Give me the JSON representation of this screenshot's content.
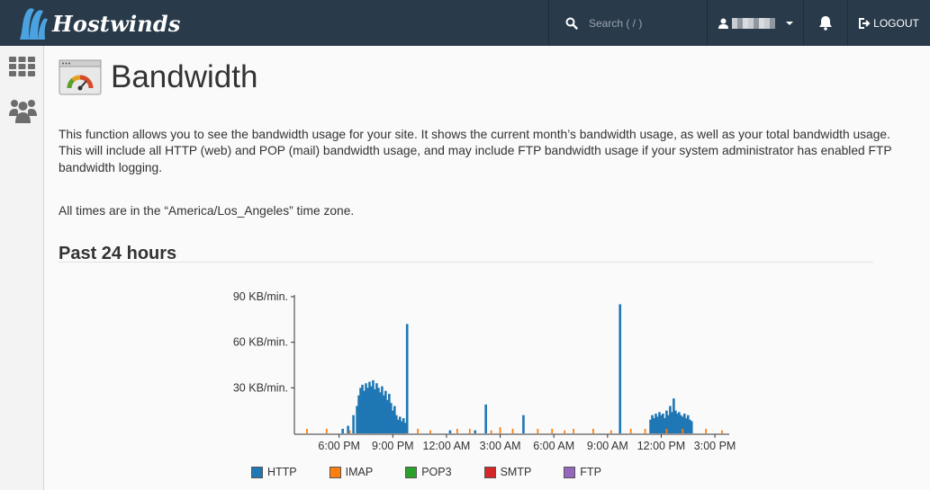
{
  "brand": {
    "name": "Hostwinds"
  },
  "header": {
    "search_placeholder": "Search ( / )",
    "logout_label": "LOGOUT"
  },
  "page": {
    "title": "Bandwidth",
    "description": "This function allows you to see the bandwidth usage for your site. It shows the current month’s bandwidth usage, as well as your total bandwidth usage. This will include all HTTP (web) and POP (mail) bandwidth usage, and may include FTP bandwidth usage if your system administrator has enabled FTP bandwidth logging.",
    "timezone_note": "All times are in the “America/Los_Angeles” time zone.",
    "section_title": "Past 24 hours"
  },
  "colors": {
    "topbar": "#293a4a",
    "http": "#1f77b4",
    "imap": "#ff7f0e",
    "pop3": "#2ca02c",
    "smtp": "#d62728",
    "ftp": "#9467bd"
  },
  "chart_data": {
    "type": "bar",
    "ylim": [
      0,
      90
    ],
    "y_ticks": [
      {
        "value": 30,
        "label": "30 KB/min."
      },
      {
        "value": 60,
        "label": "60 KB/min."
      },
      {
        "value": 90,
        "label": "90 KB/min."
      }
    ],
    "x_tick_labels": [
      "6:00 PM",
      "9:00 PM",
      "12:00 AM",
      "3:00 AM",
      "6:00 AM",
      "9:00 AM",
      "12:00 PM",
      "3:00 PM"
    ],
    "x_range_hours": [
      15.5,
      39.7
    ],
    "series": [
      {
        "name": "HTTP",
        "color": "#1f77b4",
        "points": [
          [
            18.2,
            3
          ],
          [
            18.5,
            5
          ],
          [
            18.8,
            12
          ],
          [
            19.0,
            18
          ],
          [
            19.1,
            25
          ],
          [
            19.2,
            30
          ],
          [
            19.3,
            32
          ],
          [
            19.4,
            28
          ],
          [
            19.5,
            33
          ],
          [
            19.6,
            30
          ],
          [
            19.7,
            34
          ],
          [
            19.8,
            31
          ],
          [
            19.9,
            35
          ],
          [
            20.0,
            29
          ],
          [
            20.1,
            33
          ],
          [
            20.2,
            30
          ],
          [
            20.3,
            27
          ],
          [
            20.4,
            31
          ],
          [
            20.5,
            25
          ],
          [
            20.6,
            28
          ],
          [
            20.7,
            22
          ],
          [
            20.8,
            26
          ],
          [
            20.9,
            20
          ],
          [
            21.0,
            15
          ],
          [
            21.1,
            18
          ],
          [
            21.2,
            12
          ],
          [
            21.3,
            9
          ],
          [
            21.4,
            11
          ],
          [
            21.5,
            8
          ],
          [
            21.6,
            10
          ],
          [
            21.7,
            7
          ],
          [
            21.8,
            72
          ],
          [
            24.2,
            2
          ],
          [
            25.6,
            2
          ],
          [
            26.2,
            19
          ],
          [
            28.3,
            12
          ],
          [
            33.7,
            85
          ],
          [
            35.4,
            9
          ],
          [
            35.5,
            12
          ],
          [
            35.6,
            10
          ],
          [
            35.7,
            13
          ],
          [
            35.8,
            11
          ],
          [
            35.9,
            14
          ],
          [
            36.0,
            12
          ],
          [
            36.1,
            13
          ],
          [
            36.2,
            10
          ],
          [
            36.3,
            15
          ],
          [
            36.4,
            12
          ],
          [
            36.5,
            18
          ],
          [
            36.6,
            14
          ],
          [
            36.7,
            23
          ],
          [
            36.8,
            15
          ],
          [
            36.9,
            13
          ],
          [
            37.0,
            14
          ],
          [
            37.1,
            12
          ],
          [
            37.2,
            11
          ],
          [
            37.3,
            13
          ],
          [
            37.4,
            10
          ],
          [
            37.5,
            12
          ],
          [
            37.6,
            9
          ],
          [
            37.7,
            8
          ]
        ]
      },
      {
        "name": "IMAP",
        "color": "#ff7f0e",
        "points": [
          [
            16.2,
            3
          ],
          [
            17.3,
            3
          ],
          [
            18.6,
            2
          ],
          [
            22.4,
            3
          ],
          [
            23.1,
            2
          ],
          [
            24.6,
            3
          ],
          [
            25.3,
            3
          ],
          [
            26.5,
            2
          ],
          [
            27.0,
            4
          ],
          [
            27.7,
            3
          ],
          [
            29.1,
            3
          ],
          [
            29.9,
            3
          ],
          [
            30.6,
            2
          ],
          [
            31.1,
            3
          ],
          [
            32.2,
            3
          ],
          [
            33.2,
            2
          ],
          [
            34.3,
            3
          ],
          [
            35.1,
            3
          ],
          [
            36.3,
            3
          ],
          [
            37.2,
            3
          ],
          [
            38.5,
            3
          ],
          [
            39.4,
            2
          ]
        ]
      },
      {
        "name": "POP3",
        "color": "#2ca02c",
        "points": []
      },
      {
        "name": "SMTP",
        "color": "#d62728",
        "points": []
      },
      {
        "name": "FTP",
        "color": "#9467bd",
        "points": []
      }
    ],
    "legend": [
      "HTTP",
      "IMAP",
      "POP3",
      "SMTP",
      "FTP"
    ]
  }
}
